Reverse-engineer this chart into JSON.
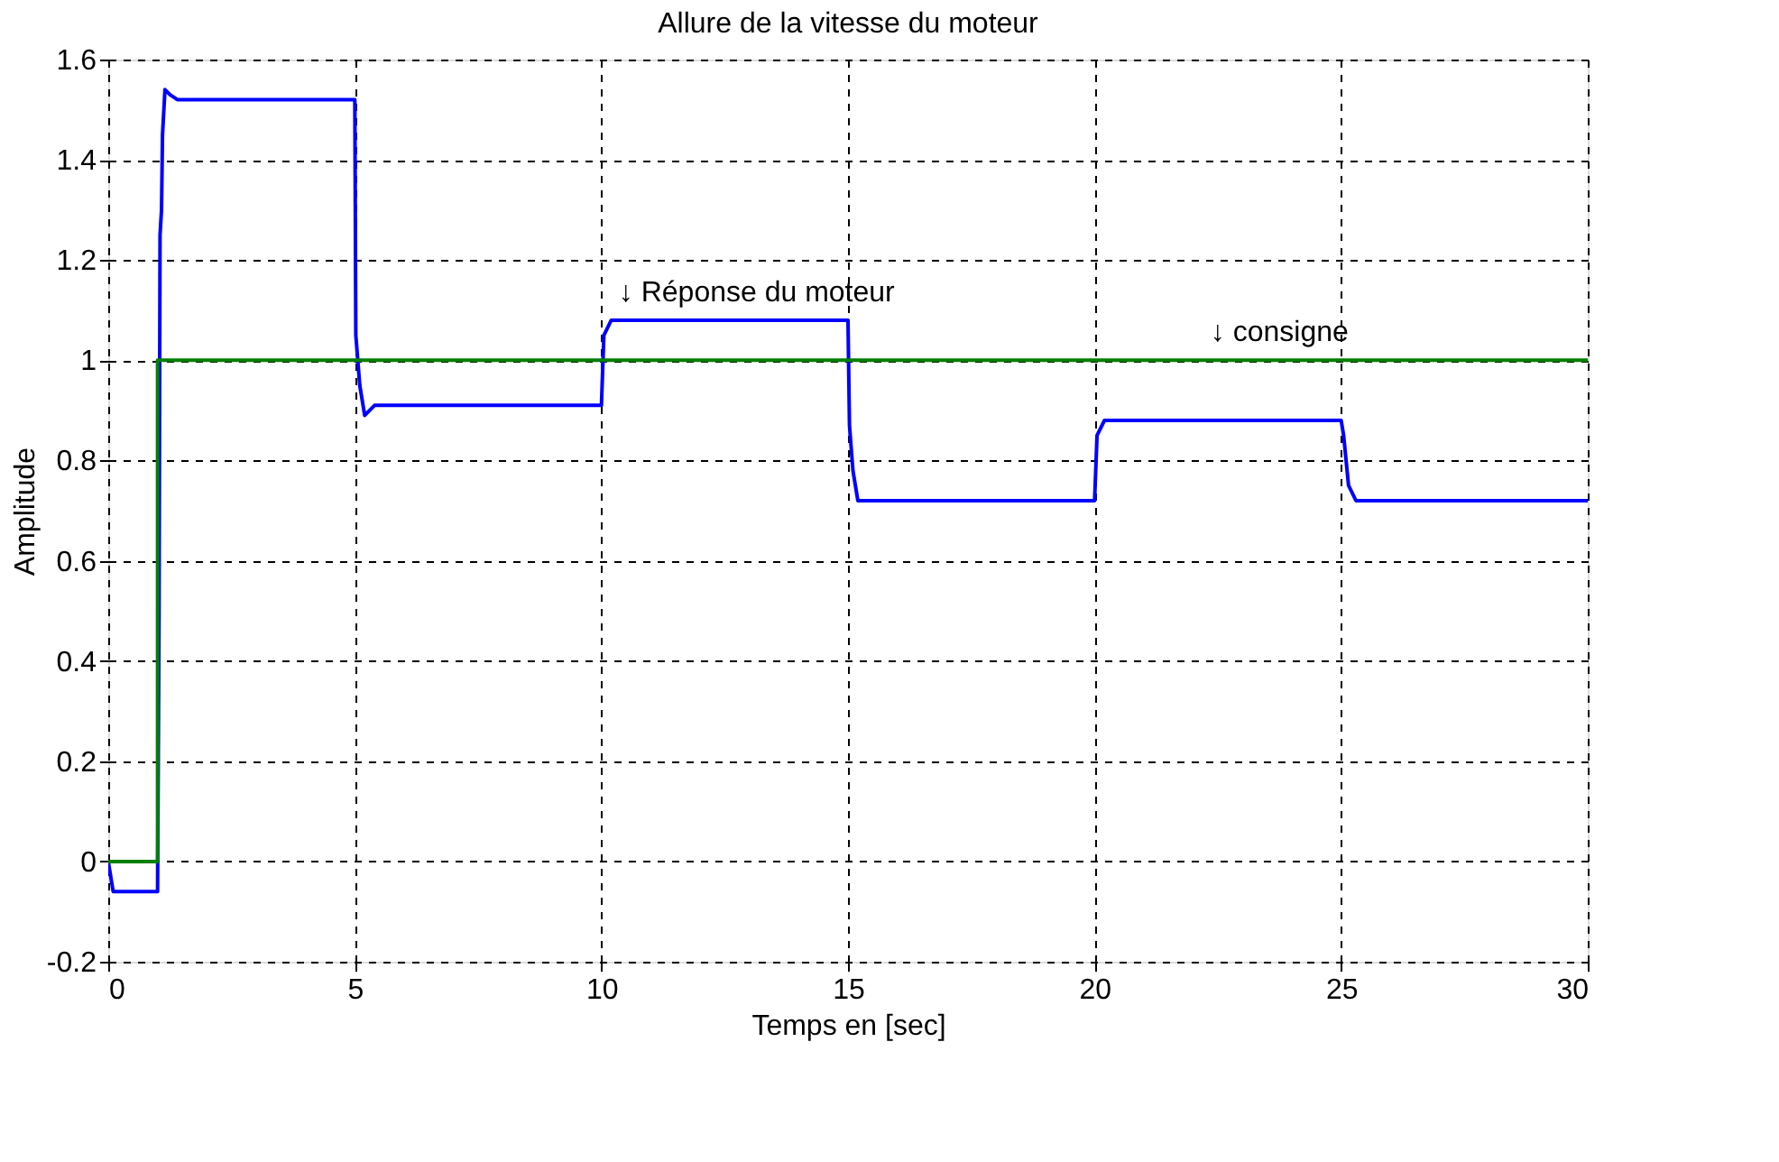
{
  "chart_data": {
    "type": "line",
    "title": "Allure de la vitesse du moteur",
    "xlabel": "Temps en [sec]",
    "ylabel": "Amplitude",
    "series": [
      {
        "color": "#0000ff",
        "x": [
          0,
          0.1,
          1,
          1.03,
          1.05,
          1.08,
          1.1,
          1.15,
          1.25,
          1.4,
          5,
          5.02,
          5.1,
          5.2,
          5.4,
          10,
          10.05,
          10.2,
          15,
          15.03,
          15.1,
          15.2,
          20,
          20.05,
          20.2,
          25,
          25.05,
          25.15,
          25.3,
          30
        ],
        "values": [
          0,
          -0.06,
          -0.06,
          0.5,
          1.25,
          1.3,
          1.45,
          1.54,
          1.53,
          1.52,
          1.52,
          1.05,
          0.95,
          0.89,
          0.91,
          0.91,
          1.05,
          1.08,
          1.08,
          0.87,
          0.78,
          0.72,
          0.72,
          0.85,
          0.88,
          0.88,
          0.85,
          0.75,
          0.72,
          0.72
        ]
      },
      {
        "color": "#008000",
        "x": [
          0,
          1,
          1,
          30
        ],
        "values": [
          0,
          0,
          1,
          1
        ]
      }
    ],
    "annotations": [
      "↓ Réponse du moteur",
      "↓ consigne"
    ],
    "xlim": [
      0,
      30
    ],
    "xticks": [
      0,
      5,
      10,
      15,
      20,
      25,
      30
    ],
    "ylim": [
      -0.2,
      1.6
    ],
    "yticks": [
      -0.2,
      0,
      0.2,
      0.4,
      0.6,
      0.8,
      1,
      1.2,
      1.4,
      1.6
    ],
    "grid": true,
    "marker": "none",
    "line_style": "solid"
  }
}
